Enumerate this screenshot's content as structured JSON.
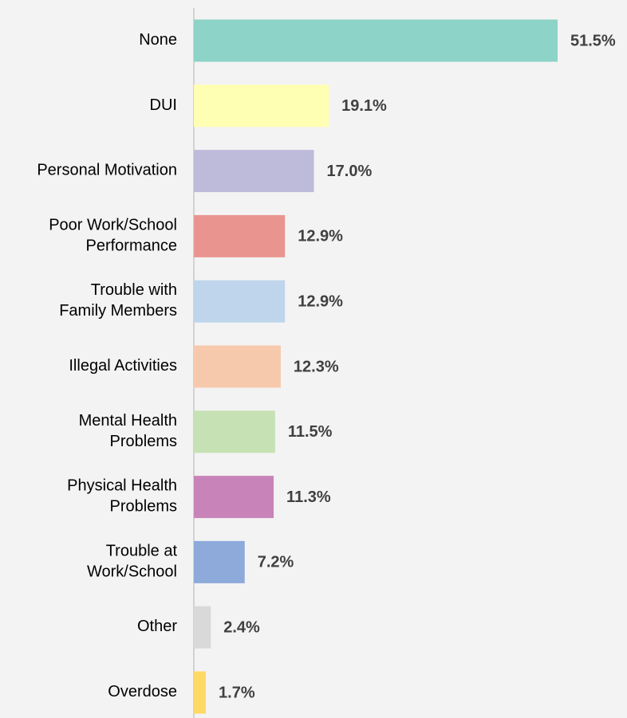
{
  "chart_data": {
    "type": "bar",
    "orientation": "horizontal",
    "categories": [
      "None",
      "DUI",
      "Personal Motivation",
      "Poor Work/School\nPerformance",
      "Trouble with\nFamily Members",
      "Illegal Activities",
      "Mental Health\nProblems",
      "Physical Health\nProblems",
      "Trouble at\nWork/School",
      "Other",
      "Overdose"
    ],
    "values": [
      51.5,
      19.1,
      17.0,
      12.9,
      12.9,
      12.3,
      11.5,
      11.3,
      7.2,
      2.4,
      1.7
    ],
    "value_labels": [
      "51.5%",
      "19.1%",
      "17.0%",
      "12.9%",
      "12.9%",
      "12.3%",
      "11.5%",
      "11.3%",
      "7.2%",
      "2.4%",
      "1.7%"
    ],
    "colors": [
      "#8dd3c7",
      "#ffffb3",
      "#bebada",
      "#ea9490",
      "#bed5ec",
      "#f7c9ac",
      "#c6e1b3",
      "#c884b8",
      "#8eaadb",
      "#d9d9d9",
      "#ffd966"
    ]
  }
}
